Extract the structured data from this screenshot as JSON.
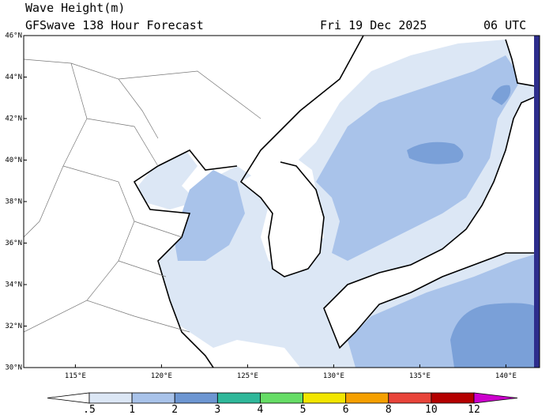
{
  "header": {
    "title": "Wave Height(m)",
    "subtitle": "GFSwave 138 Hour Forecast",
    "date": "Fri 19 Dec 2025",
    "time": "06 UTC"
  },
  "lat_labels": [
    "46°N",
    "44°N",
    "42°N",
    "40°N",
    "38°N",
    "36°N",
    "34°N",
    "32°N",
    "30°N"
  ],
  "lon_labels": [
    "115°E",
    "120°E",
    "125°E",
    "130°E",
    "135°E",
    "140°E"
  ],
  "colorbar": {
    "labels": [
      ".5",
      "1",
      "2",
      "3",
      "4",
      "5",
      "6",
      "8",
      "10",
      "12"
    ],
    "colors": [
      "#ffffff",
      "#dce7f5",
      "#a9c3ea",
      "#6d96d2",
      "#2fb89a",
      "#66dd66",
      "#f2e600",
      "#f5a000",
      "#e8443a",
      "#b40000",
      "#cc00cc"
    ]
  }
}
